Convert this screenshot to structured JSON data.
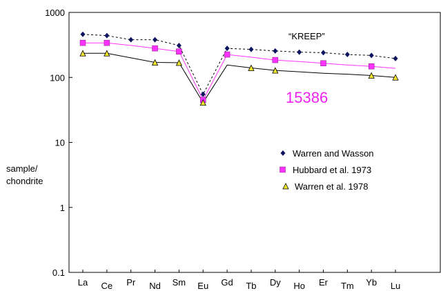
{
  "chart_data": {
    "type": "line",
    "ylabel_line1": "sample/",
    "ylabel_line2": "chondrite",
    "yscale": "log",
    "ylim": [
      0.1,
      1000
    ],
    "yticks": [
      {
        "value": 0.1,
        "label": "0.1"
      },
      {
        "value": 1,
        "label": "1"
      },
      {
        "value": 10,
        "label": "10"
      },
      {
        "value": 100,
        "label": "100"
      },
      {
        "value": 1000,
        "label": "1000"
      }
    ],
    "categories": [
      "La",
      "Ce",
      "Pr",
      "Nd",
      "Sm",
      "Eu",
      "Gd",
      "Tb",
      "Dy",
      "Ho",
      "Er",
      "Tm",
      "Yb",
      "Lu"
    ],
    "grid": false,
    "legend_position": "right",
    "series": [
      {
        "name": "Warren and Wasson",
        "marker": "diamond",
        "color": "#0d1560",
        "line_style": "dashed",
        "values": [
          460,
          440,
          380,
          380,
          310,
          55,
          280,
          270,
          255,
          245,
          240,
          225,
          218,
          195
        ],
        "marker_on": [
          true,
          true,
          true,
          true,
          true,
          true,
          true,
          true,
          true,
          true,
          true,
          true,
          true,
          true
        ]
      },
      {
        "name": "Hubbard et al. 1973",
        "marker": "square",
        "color": "#ff33ff",
        "line_style": "solid",
        "values": [
          340,
          340,
          310,
          280,
          250,
          45,
          225,
          205,
          185,
          175,
          165,
          155,
          148,
          138
        ],
        "marker_on": [
          true,
          true,
          false,
          true,
          true,
          true,
          true,
          false,
          true,
          false,
          true,
          false,
          true,
          false
        ]
      },
      {
        "name": "Warren et al. 1978",
        "marker": "triangle",
        "color": "#f2e62a",
        "line_style": "solid",
        "values": [
          235,
          235,
          200,
          170,
          168,
          41,
          155,
          140,
          128,
          122,
          116,
          112,
          107,
          100
        ],
        "marker_on": [
          true,
          true,
          false,
          true,
          true,
          true,
          false,
          true,
          true,
          false,
          false,
          false,
          true,
          true
        ]
      }
    ],
    "annotations": [
      {
        "text": "“KREEP”",
        "color": "#000000"
      },
      {
        "text": "15386",
        "color": "#ee22ee"
      }
    ]
  }
}
